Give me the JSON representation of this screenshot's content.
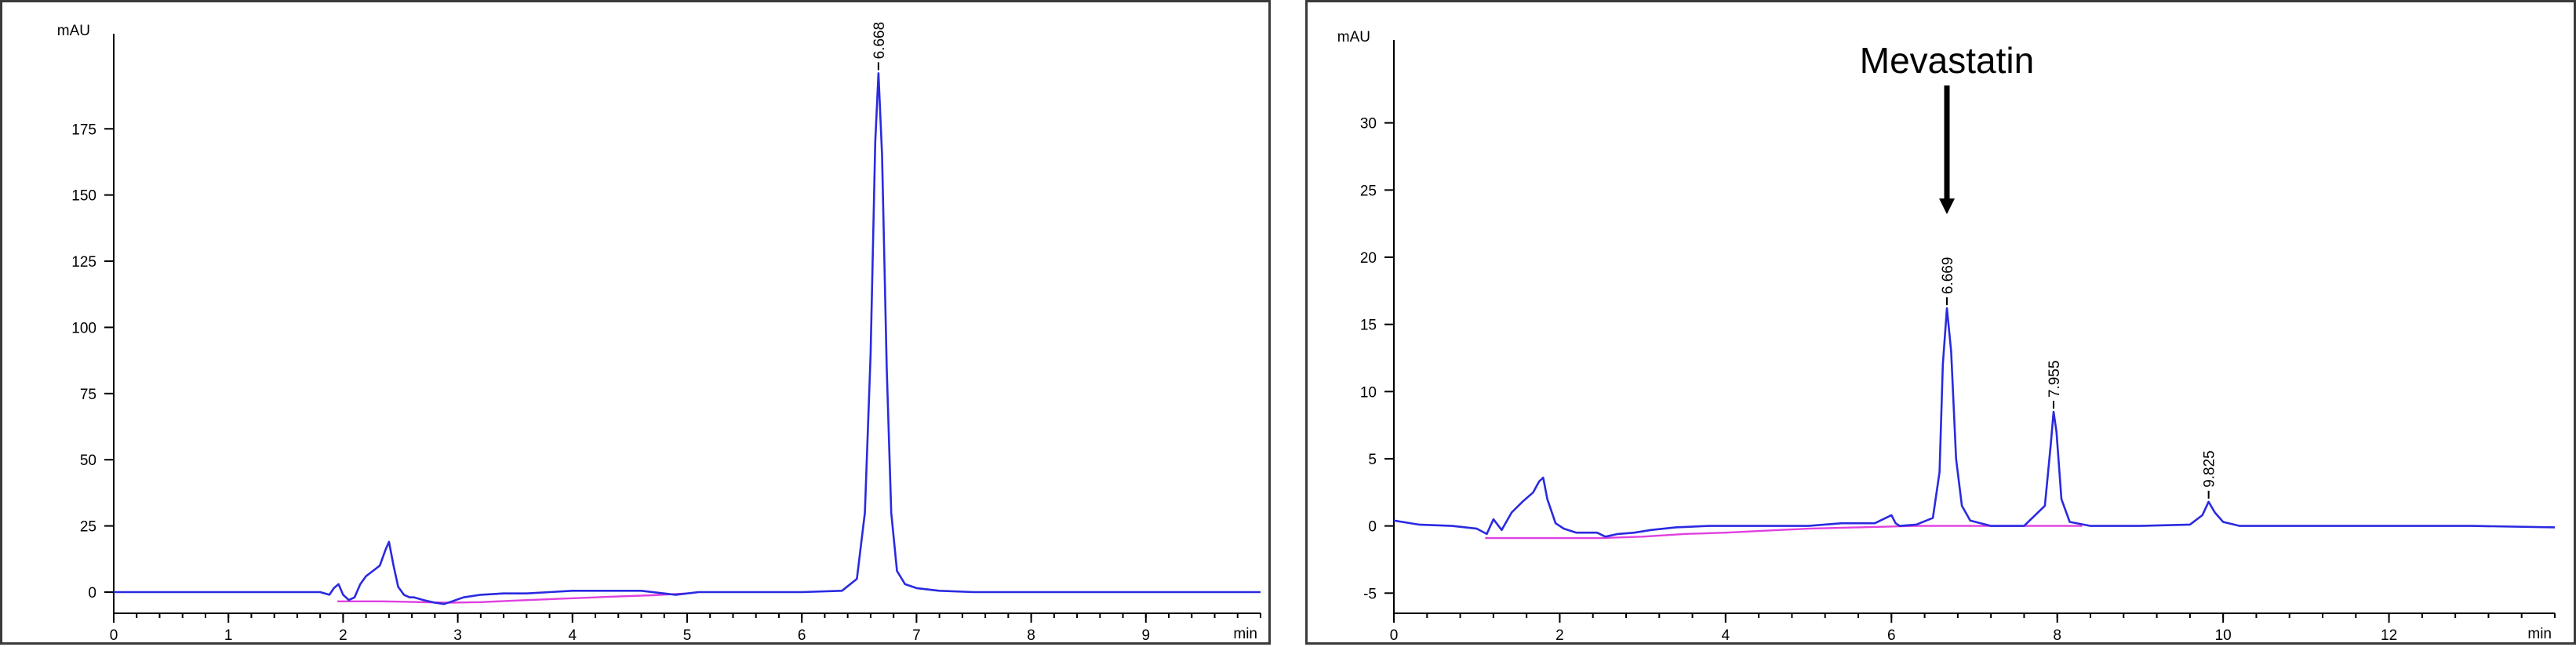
{
  "chart_data": [
    {
      "type": "line",
      "xlabel": "min",
      "ylabel": "mAU",
      "xlim": [
        0,
        10
      ],
      "ylim": [
        -8,
        205
      ],
      "x_ticks": [
        0,
        1,
        2,
        3,
        4,
        5,
        6,
        7,
        8,
        9
      ],
      "x_minor_step": 0.2,
      "y_ticks": [
        0,
        25,
        50,
        75,
        100,
        125,
        150,
        175
      ],
      "grid": false,
      "colors": {
        "trace": "#2a2ae0",
        "baseline": "#e040e0"
      },
      "peaks": [
        {
          "rt": 6.668,
          "label": "6.668",
          "height": 196
        }
      ],
      "series": [
        {
          "x": [
            0,
            1.8,
            1.88,
            1.92,
            1.96,
            2.0,
            2.05,
            2.1,
            2.15,
            2.2,
            2.26,
            2.32,
            2.37,
            2.4,
            2.44,
            2.48,
            2.53,
            2.58,
            2.62,
            2.7,
            2.8,
            2.88,
            2.95,
            3.05,
            3.2,
            3.4,
            3.6,
            3.8,
            4.0,
            4.3,
            4.6,
            4.9,
            5.1,
            5.5,
            6.0,
            6.35,
            6.48,
            6.55,
            6.6,
            6.64,
            6.668,
            6.7,
            6.74,
            6.78,
            6.83,
            6.9,
            7.0,
            7.2,
            7.5,
            8.0,
            9.0,
            10.0
          ],
          "y": [
            0,
            0,
            -1,
            1.5,
            3,
            -1,
            -3,
            -2,
            3,
            6,
            8,
            10,
            16,
            19,
            10,
            2,
            -1,
            -2,
            -2,
            -3,
            -4,
            -4.5,
            -3.5,
            -2,
            -1,
            -0.5,
            -0.5,
            0,
            0.5,
            0.5,
            0.5,
            -1,
            0,
            0,
            0,
            0.5,
            5,
            30,
            90,
            170,
            196,
            165,
            85,
            30,
            8,
            3,
            1.5,
            0.5,
            0,
            0,
            0,
            0
          ]
        },
        {
          "x": [
            1.95,
            2.35,
            2.9,
            3.2,
            3.5,
            3.9,
            4.3,
            4.7,
            5.0
          ],
          "y": [
            -3.5,
            -3.5,
            -4,
            -3.8,
            -3.2,
            -2.5,
            -1.8,
            -1.2,
            -0.5
          ]
        }
      ]
    },
    {
      "type": "line",
      "xlabel": "min",
      "ylabel": "mAU",
      "xlim": [
        0,
        14
      ],
      "ylim": [
        -6.5,
        35
      ],
      "x_ticks": [
        0,
        2,
        4,
        6,
        8,
        10,
        12
      ],
      "x_minor_step": 0.4,
      "y_ticks": [
        -5,
        0,
        5,
        10,
        15,
        20,
        25,
        30
      ],
      "grid": false,
      "colors": {
        "trace": "#2a2ae0",
        "baseline": "#e040e0"
      },
      "annotation": {
        "text": "Mevastatin",
        "x": 6.669
      },
      "peaks": [
        {
          "rt": 6.669,
          "label": "6.669",
          "height": 16.2
        },
        {
          "rt": 7.955,
          "label": "7.955",
          "height": 8.5
        },
        {
          "rt": 9.825,
          "label": "9.825",
          "height": 1.8
        }
      ],
      "series": [
        {
          "x": [
            0,
            0.3,
            0.7,
            1.0,
            1.12,
            1.2,
            1.3,
            1.42,
            1.55,
            1.68,
            1.75,
            1.8,
            1.85,
            1.95,
            2.05,
            2.2,
            2.35,
            2.45,
            2.55,
            2.7,
            2.9,
            3.1,
            3.4,
            3.8,
            4.2,
            4.6,
            5.0,
            5.4,
            5.8,
            6.0,
            6.05,
            6.1,
            6.3,
            6.5,
            6.58,
            6.62,
            6.669,
            6.72,
            6.78,
            6.85,
            6.95,
            7.2,
            7.6,
            7.85,
            7.92,
            7.955,
            7.99,
            8.05,
            8.15,
            8.4,
            9.0,
            9.6,
            9.75,
            9.825,
            9.9,
            10.0,
            10.2,
            11.0,
            12.0,
            13.0,
            14.0
          ],
          "y": [
            0.4,
            0.1,
            0,
            -0.2,
            -0.6,
            0.5,
            -0.3,
            1.0,
            1.8,
            2.5,
            3.3,
            3.6,
            2.0,
            0.2,
            -0.2,
            -0.5,
            -0.5,
            -0.5,
            -0.8,
            -0.6,
            -0.5,
            -0.3,
            -0.1,
            0,
            0,
            0,
            0,
            0.2,
            0.2,
            0.8,
            0.2,
            0,
            0.1,
            0.6,
            4.0,
            12.0,
            16.2,
            13.0,
            5.0,
            1.5,
            0.4,
            0,
            0,
            1.5,
            6.0,
            8.5,
            7.0,
            2.0,
            0.3,
            0,
            0,
            0.1,
            0.8,
            1.8,
            1.0,
            0.3,
            0,
            0,
            0,
            0,
            -0.1
          ]
        },
        {
          "x": [
            1.1,
            1.6,
            2.5,
            3.0,
            3.5,
            4.0,
            4.5,
            5.0,
            5.6,
            6.3,
            7.0,
            8.0,
            8.3
          ],
          "y": [
            -0.9,
            -0.9,
            -0.9,
            -0.8,
            -0.6,
            -0.5,
            -0.35,
            -0.2,
            -0.1,
            0,
            0,
            0,
            0
          ]
        }
      ]
    }
  ]
}
